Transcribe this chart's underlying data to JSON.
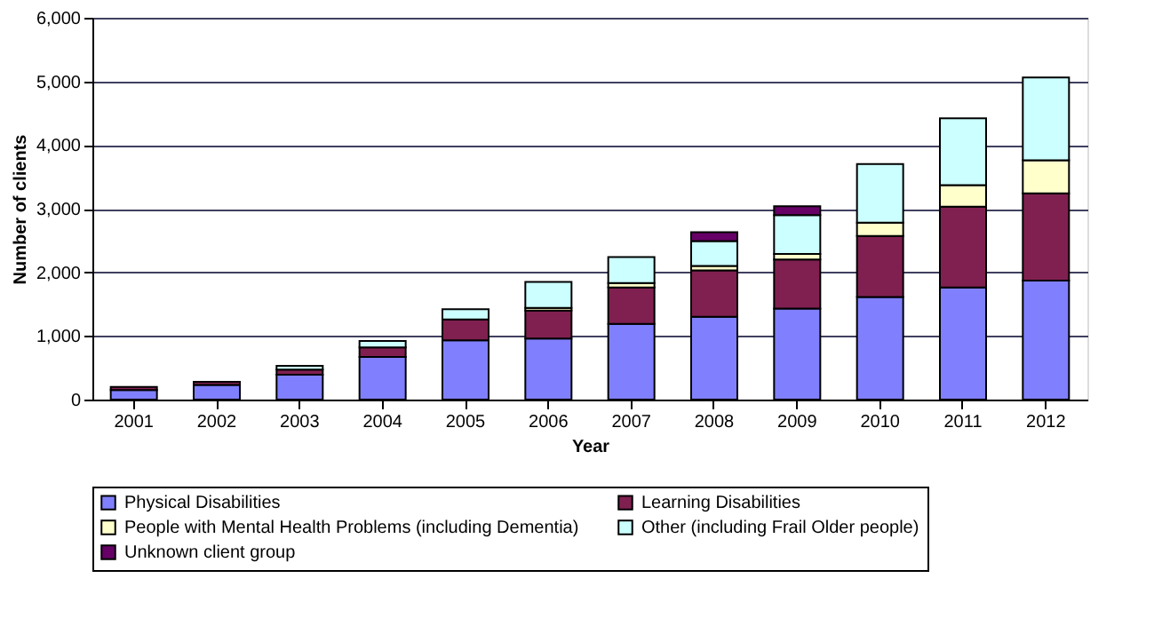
{
  "chart_data": {
    "type": "bar",
    "stacked": true,
    "xlabel": "Year",
    "ylabel": "Number of clients",
    "categories": [
      "2001",
      "2002",
      "2003",
      "2004",
      "2005",
      "2006",
      "2007",
      "2008",
      "2009",
      "2010",
      "2011",
      "2012"
    ],
    "series": [
      {
        "name": "Physical Disabilities",
        "color": "#8080ff",
        "values": [
          150,
          230,
          390,
          670,
          930,
          960,
          1190,
          1300,
          1430,
          1610,
          1760,
          1870
        ]
      },
      {
        "name": "Learning Disabilities",
        "color": "#802050",
        "values": [
          50,
          50,
          80,
          150,
          330,
          440,
          570,
          730,
          770,
          960,
          1270,
          1370
        ]
      },
      {
        "name": "People with Mental Health Problems (including Dementia)",
        "color": "#ffffcc",
        "values": [
          null,
          null,
          null,
          null,
          null,
          40,
          70,
          70,
          90,
          210,
          340,
          520
        ]
      },
      {
        "name": "Other (including Frail Older people)",
        "color": "#ccffff",
        "values": [
          null,
          null,
          60,
          100,
          160,
          410,
          410,
          390,
          610,
          920,
          1050,
          1300
        ]
      },
      {
        "name": "Unknown client group",
        "color": "#660066",
        "values": [
          null,
          null,
          null,
          null,
          null,
          null,
          null,
          140,
          140,
          null,
          null,
          null
        ]
      }
    ],
    "ylim": [
      0,
      6000
    ],
    "yticks": [
      {
        "value": 0,
        "label": "0"
      },
      {
        "value": 1000,
        "label": "1,000"
      },
      {
        "value": 2000,
        "label": "2,000"
      },
      {
        "value": 3000,
        "label": "3,000"
      },
      {
        "value": 4000,
        "label": "4,000"
      },
      {
        "value": 5000,
        "label": "5,000"
      },
      {
        "value": 6000,
        "label": "6,000"
      }
    ],
    "grid": "y",
    "legend": "bottom"
  }
}
